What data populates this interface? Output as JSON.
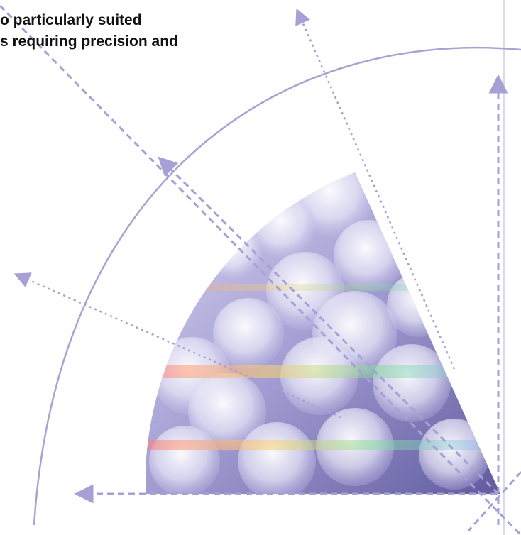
{
  "headline": {
    "line1": "o particularly suited",
    "line2": "s requiring precision and"
  },
  "graphic": {
    "subject": "quarter-circle wedge filled with iridescent bokeh spheres, overlaid with dashed arrows radiating from the lower-right corner",
    "accent_color": "#a9a3d4",
    "line_color": "#9d97cf",
    "icons": [
      "arrow-up-icon",
      "arrow-left-icon",
      "arrow-upper-left-icon",
      "arrow-upper-right-icon"
    ]
  }
}
